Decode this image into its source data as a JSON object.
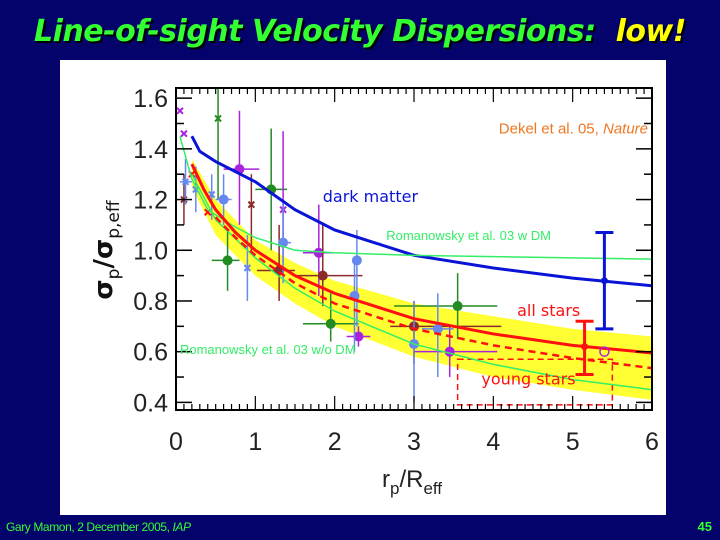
{
  "slide": {
    "title_main": "Line-of-sight Velocity Dispersions:",
    "title_highlight": "low!",
    "footer_author": "Gary Mamon, 2 December 2005, ",
    "footer_venue": "IAP",
    "page_number": "45"
  },
  "colors": {
    "background": "#03036b",
    "title": "#33ff33",
    "highlight": "#ffff00",
    "dark_matter": "#0a14d6",
    "stars": "#ff1010",
    "romanowsky": "#33ee66",
    "band": "#ffff33",
    "citation": "#ee7722"
  },
  "chart_data": {
    "type": "line",
    "xlabel": "r_p/R_eff",
    "xlabel_main": "r",
    "xlabel_sub1": "p",
    "xlabel_mid": "/R",
    "xlabel_sub2": "eff",
    "ylabel_main1": "σ",
    "ylabel_sub1": "p",
    "ylabel_mid": "/σ",
    "ylabel_sub2": "p,eff",
    "xlim": [
      0,
      6
    ],
    "ylim": [
      0.37,
      1.64
    ],
    "xticks": [
      "0",
      "1",
      "2",
      "3",
      "4",
      "5",
      "6"
    ],
    "yticks": [
      "0.4",
      "0.6",
      "0.8",
      "1.0",
      "1.2",
      "1.4",
      "1.6"
    ],
    "citation": {
      "text": "Dekel et al. 05, ",
      "italic": "Nature",
      "x": 5.95,
      "y": 1.46
    },
    "series": [
      {
        "name": "dark matter",
        "color": "#0a14d6",
        "width": 3,
        "dash": "",
        "x": [
          0.2,
          0.3,
          0.5,
          0.75,
          1,
          1.5,
          2,
          2.5,
          3,
          4,
          5,
          6
        ],
        "y": [
          1.45,
          1.39,
          1.35,
          1.31,
          1.27,
          1.16,
          1.08,
          1.03,
          0.98,
          0.93,
          0.89,
          0.86
        ]
      },
      {
        "name": "Romanowsky et al. 03 w DM",
        "color": "#33ee66",
        "width": 1.5,
        "dash": "",
        "x": [
          0.05,
          0.2,
          0.4,
          0.7,
          1,
          1.5,
          2,
          3,
          4,
          5,
          6
        ],
        "y": [
          1.45,
          1.28,
          1.16,
          1.1,
          1.05,
          1.0,
          0.99,
          0.98,
          0.975,
          0.97,
          0.965
        ]
      },
      {
        "name": "Romanowsky et al. 03 w/o DM",
        "color": "#33ee66",
        "width": 1.5,
        "dash": "",
        "x": [
          0.2,
          0.5,
          1,
          1.5,
          2,
          3,
          4,
          5,
          6
        ],
        "y": [
          1.3,
          1.12,
          0.97,
          0.85,
          0.76,
          0.63,
          0.55,
          0.49,
          0.45
        ]
      },
      {
        "name": "all stars",
        "color": "#ff1010",
        "width": 3,
        "dash": "",
        "x": [
          0.2,
          0.35,
          0.5,
          0.75,
          1,
          1.5,
          2,
          3,
          4,
          5,
          6
        ],
        "y": [
          1.34,
          1.24,
          1.16,
          1.07,
          1.0,
          0.9,
          0.83,
          0.73,
          0.67,
          0.625,
          0.595
        ]
      },
      {
        "name": "young stars",
        "color": "#ff1010",
        "width": 2.5,
        "dash": "7,5",
        "x": [
          0.5,
          0.75,
          1,
          1.5,
          2,
          3,
          4,
          5,
          6
        ],
        "y": [
          1.13,
          1.05,
          0.98,
          0.87,
          0.79,
          0.69,
          0.625,
          0.575,
          0.535
        ]
      }
    ],
    "band": {
      "color": "#ffff33",
      "x": [
        0.2,
        0.5,
        1,
        1.5,
        2,
        3,
        4,
        5,
        6
      ],
      "upper": [
        1.36,
        1.2,
        1.04,
        0.95,
        0.88,
        0.79,
        0.74,
        0.69,
        0.66
      ],
      "lower": [
        1.25,
        1.06,
        0.9,
        0.79,
        0.7,
        0.58,
        0.5,
        0.45,
        0.41
      ]
    },
    "labels": [
      {
        "text": "dark matter",
        "x": 1.85,
        "y": 1.19,
        "color": "#0a14d6",
        "size": 16,
        "anchor": "start"
      },
      {
        "text": "Romanowsky et al. 03 w DM",
        "x": 2.65,
        "y": 1.04,
        "color": "#33ee66",
        "size": 13,
        "anchor": "start"
      },
      {
        "text": "Romanowsky et al. 03 w/o DM",
        "x": 0.05,
        "y": 0.59,
        "color": "#33ee66",
        "size": 13,
        "anchor": "start"
      },
      {
        "text": "all stars",
        "x": 4.3,
        "y": 0.74,
        "color": "#ff1010",
        "size": 16,
        "anchor": "start"
      },
      {
        "text": "young stars",
        "x": 3.85,
        "y": 0.47,
        "color": "#ff1010",
        "size": 16,
        "anchor": "start"
      }
    ],
    "young_box": {
      "x": [
        3.55,
        5.5
      ],
      "y": [
        0.39,
        0.57
      ]
    },
    "points": [
      {
        "c": "#228b22",
        "x": 1.2,
        "y": 1.24,
        "xl": 1.0,
        "xh": 1.4,
        "yl": 1.0,
        "yh": 1.48,
        "m": "o"
      },
      {
        "c": "#228b22",
        "x": 0.65,
        "y": 0.96,
        "xl": 0.45,
        "xh": 0.8,
        "yl": 0.84,
        "yh": 1.08,
        "m": "o"
      },
      {
        "c": "#228b22",
        "x": 1.95,
        "y": 0.71,
        "xl": 1.6,
        "xh": 2.3,
        "yl": 0.64,
        "yh": 0.83,
        "m": "o"
      },
      {
        "c": "#228b22",
        "x": 3.55,
        "y": 0.78,
        "xl": 2.75,
        "xh": 4.05,
        "yl": 0.65,
        "yh": 0.91,
        "m": "o"
      },
      {
        "c": "#228b22",
        "x": 0.53,
        "y": 1.52,
        "xl": 0.53,
        "xh": 0.53,
        "yl": 1.2,
        "yh": 1.64,
        "m": "x"
      },
      {
        "c": "#aa22dd",
        "x": 0.8,
        "y": 1.32,
        "xl": 0.6,
        "xh": 1.05,
        "yl": 1.1,
        "yh": 1.55,
        "m": "o"
      },
      {
        "c": "#aa22dd",
        "x": 1.8,
        "y": 0.99,
        "xl": 1.6,
        "xh": 2.0,
        "yl": 0.82,
        "yh": 1.18,
        "m": "o"
      },
      {
        "c": "#aa22dd",
        "x": 2.3,
        "y": 0.66,
        "xl": 2.15,
        "xh": 2.45,
        "yl": 0.62,
        "yh": 0.7,
        "m": "o"
      },
      {
        "c": "#aa22dd",
        "x": 3.45,
        "y": 0.6,
        "xl": 3.0,
        "xh": 4.05,
        "yl": 0.5,
        "yh": 0.7,
        "m": "o"
      },
      {
        "c": "#aa22dd",
        "x": 1.35,
        "y": 1.16,
        "xl": 1.35,
        "xh": 1.35,
        "yl": 0.95,
        "yh": 1.47,
        "m": "x"
      },
      {
        "c": "#aa22dd",
        "x": 0.05,
        "y": 1.55,
        "xl": 0.05,
        "xh": 0.05,
        "yl": 1.55,
        "yh": 1.55,
        "m": "x"
      },
      {
        "c": "#aa22dd",
        "x": 0.1,
        "y": 1.46,
        "xl": 0.1,
        "xh": 0.1,
        "yl": 1.46,
        "yh": 1.46,
        "m": "x"
      },
      {
        "c": "#8b2a2a",
        "x": 1.3,
        "y": 0.92,
        "xl": 1.02,
        "xh": 1.5,
        "yl": 0.8,
        "yh": 1.1,
        "m": "o"
      },
      {
        "c": "#8b2a2a",
        "x": 1.85,
        "y": 0.9,
        "xl": 1.5,
        "xh": 2.35,
        "yl": 0.78,
        "yh": 1.1,
        "m": "o"
      },
      {
        "c": "#8b2a2a",
        "x": 3.0,
        "y": 0.7,
        "xl": 2.7,
        "xh": 4.1,
        "yl": 0.55,
        "yh": 0.8,
        "m": "o"
      },
      {
        "c": "#8b2a2a",
        "x": 0.95,
        "y": 1.18,
        "xl": 0.95,
        "xh": 0.95,
        "yl": 1.0,
        "yh": 1.3,
        "m": "x"
      },
      {
        "c": "#8b2a2a",
        "x": 0.1,
        "y": 1.2,
        "xl": 0.1,
        "xh": 0.1,
        "yl": 1.1,
        "yh": 1.3,
        "m": "x"
      },
      {
        "c": "#6688ee",
        "x": 1.35,
        "y": 1.03,
        "xl": 1.3,
        "xh": 1.45,
        "yl": 0.87,
        "yh": 1.2,
        "m": "o"
      },
      {
        "c": "#6688ee",
        "x": 2.28,
        "y": 0.96,
        "xl": 2.28,
        "xh": 2.28,
        "yl": 0.7,
        "yh": 1.08,
        "m": "o"
      },
      {
        "c": "#6688ee",
        "x": 2.25,
        "y": 0.82,
        "xl": 2.25,
        "xh": 2.25,
        "yl": 0.6,
        "yh": 0.95,
        "m": "o"
      },
      {
        "c": "#6688ee",
        "x": 3.0,
        "y": 0.63,
        "xl": 3.0,
        "xh": 3.0,
        "yl": 0.4,
        "yh": 0.8,
        "m": "o"
      },
      {
        "c": "#6688ee",
        "x": 3.3,
        "y": 0.69,
        "xl": 3.1,
        "xh": 3.5,
        "yl": 0.5,
        "yh": 0.83,
        "m": "o"
      },
      {
        "c": "#6688ee",
        "x": 0.6,
        "y": 1.2,
        "xl": 0.5,
        "xh": 0.7,
        "yl": 1.1,
        "yh": 1.3,
        "m": "o"
      },
      {
        "c": "#6688ee",
        "x": 0.9,
        "y": 0.93,
        "xl": 0.9,
        "xh": 0.9,
        "yl": 0.8,
        "yh": 1.06,
        "m": "x"
      },
      {
        "c": "#6688ee",
        "x": 0.12,
        "y": 1.27,
        "xl": 0.05,
        "xh": 0.2,
        "yl": 1.18,
        "yh": 1.36,
        "m": "x"
      },
      {
        "c": "#6688ee",
        "x": 0.25,
        "y": 1.24,
        "xl": 0.25,
        "xh": 0.25,
        "yl": 1.15,
        "yh": 1.33,
        "m": "x"
      },
      {
        "c": "#6688ee",
        "x": 0.45,
        "y": 1.22,
        "xl": 0.45,
        "xh": 0.45,
        "yl": 1.12,
        "yh": 1.3,
        "m": "x"
      },
      {
        "c": "#ff1010",
        "x": 0.4,
        "y": 1.15,
        "xl": 0.4,
        "xh": 0.4,
        "yl": 1.15,
        "yh": 1.15,
        "m": "x"
      },
      {
        "c": "#ff1010",
        "x": 0.2,
        "y": 1.3,
        "xl": 0.2,
        "xh": 0.2,
        "yl": 1.3,
        "yh": 1.3,
        "m": "x"
      }
    ],
    "error_bars": [
      {
        "name": "dark-matter-error",
        "c": "#0a14d6",
        "x": 5.4,
        "y": 0.88,
        "yl": 0.69,
        "yh": 1.07
      },
      {
        "name": "all-stars-error",
        "c": "#ff1010",
        "x": 5.15,
        "y": 0.62,
        "yl": 0.51,
        "yh": 0.72
      }
    ],
    "open_point": {
      "c": "#aa22dd",
      "x": 5.4,
      "y": 0.6
    }
  }
}
